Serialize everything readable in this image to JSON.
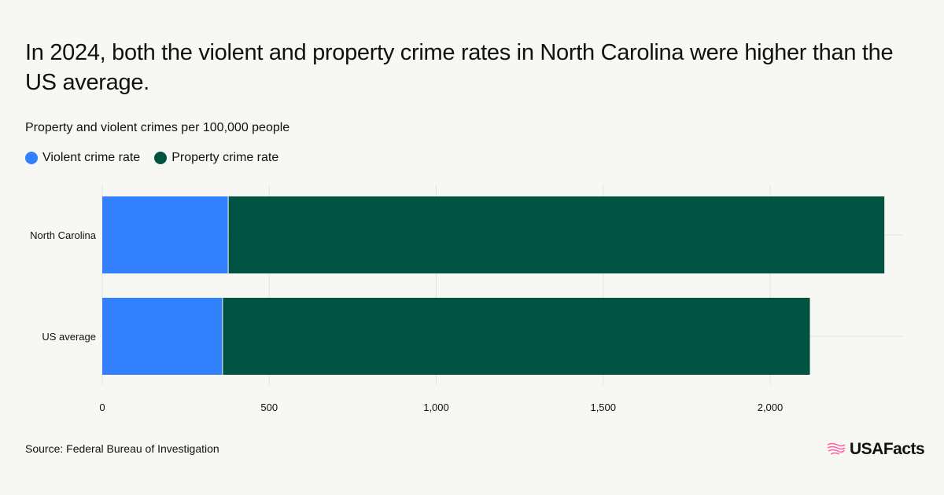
{
  "title": "In 2024, both the violent and property crime rates in North Carolina were higher than the US average.",
  "subtitle": "Property and violent crimes per 100,000 people",
  "source": "Source: Federal Bureau of Investigation",
  "logo": "USAFacts",
  "colors": {
    "violent": "#3380ff",
    "property": "#005241",
    "logo_accent": "#ff5fa8"
  },
  "chart_data": {
    "type": "bar",
    "orientation": "horizontal",
    "stacked": true,
    "categories": [
      "North Carolina",
      "US average"
    ],
    "series": [
      {
        "name": "Violent crime rate",
        "values": [
          376,
          359
        ]
      },
      {
        "name": "Property crime rate",
        "values": [
          1966,
          1760
        ]
      }
    ],
    "xlim": [
      0,
      2400
    ],
    "xticks": [
      0,
      500,
      1000,
      1500,
      2000
    ],
    "xtick_labels": [
      "0",
      "500",
      "1,000",
      "1,500",
      "2,000"
    ],
    "grid": true,
    "legend_position": "top-left"
  }
}
